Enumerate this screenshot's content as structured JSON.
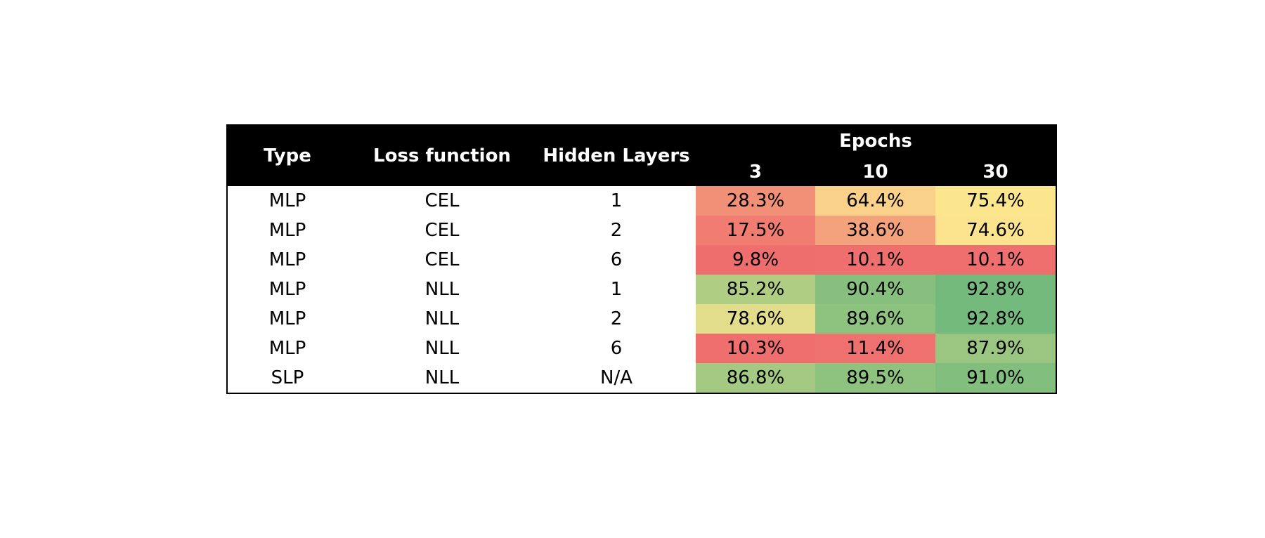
{
  "chart_data": {
    "type": "table",
    "columns": [
      "Type",
      "Loss function",
      "Hidden Layers"
    ],
    "group_header": "Epochs",
    "epochs": [
      "3",
      "10",
      "30"
    ],
    "rows": [
      {
        "type": "MLP",
        "loss": "CEL",
        "layers": "1",
        "acc": [
          "28.3%",
          "64.4%",
          "75.4%"
        ],
        "values": [
          28.3,
          64.4,
          75.4
        ]
      },
      {
        "type": "MLP",
        "loss": "CEL",
        "layers": "2",
        "acc": [
          "17.5%",
          "38.6%",
          "74.6%"
        ],
        "values": [
          17.5,
          38.6,
          74.6
        ]
      },
      {
        "type": "MLP",
        "loss": "CEL",
        "layers": "6",
        "acc": [
          "9.8%",
          "10.1%",
          "10.1%"
        ],
        "values": [
          9.8,
          10.1,
          10.1
        ]
      },
      {
        "type": "MLP",
        "loss": "NLL",
        "layers": "1",
        "acc": [
          "85.2%",
          "90.4%",
          "92.8%"
        ],
        "values": [
          85.2,
          90.4,
          92.8
        ]
      },
      {
        "type": "MLP",
        "loss": "NLL",
        "layers": "2",
        "acc": [
          "78.6%",
          "89.6%",
          "92.8%"
        ],
        "values": [
          78.6,
          89.6,
          92.8
        ]
      },
      {
        "type": "MLP",
        "loss": "NLL",
        "layers": "6",
        "acc": [
          "10.3%",
          "11.4%",
          "87.9%"
        ],
        "values": [
          10.3,
          11.4,
          87.9
        ]
      },
      {
        "type": "SLP",
        "loss": "NLL",
        "layers": "N/A",
        "acc": [
          "86.8%",
          "89.5%",
          "91.0%"
        ],
        "values": [
          86.8,
          89.5,
          91.0
        ]
      }
    ],
    "color_scale": {
      "low": "#ee6e6e",
      "mid": "#fbe58d",
      "high": "#74ba7c"
    }
  }
}
